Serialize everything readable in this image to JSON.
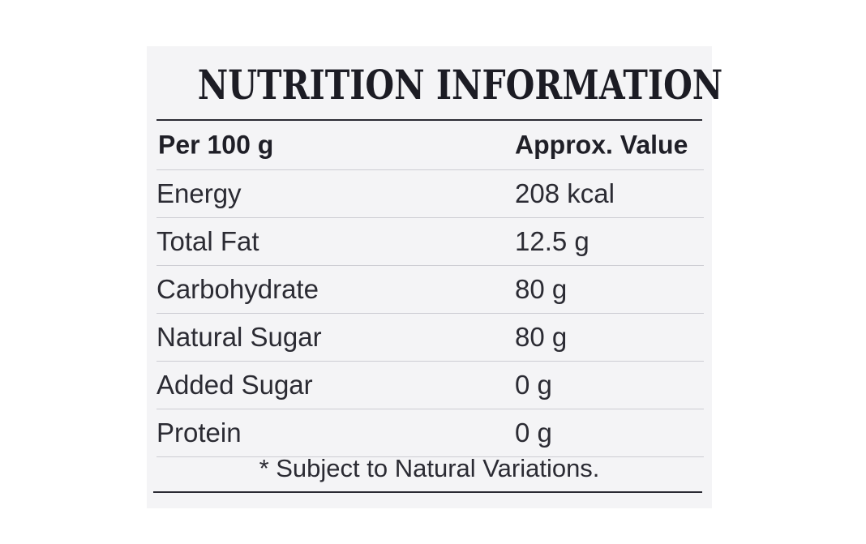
{
  "panel": {
    "title": "NUTRITION INFORMATION",
    "header": {
      "basis": "Per 100 g",
      "value_col": "Approx. Value"
    },
    "rows": [
      {
        "name": "Energy",
        "value": "208 kcal"
      },
      {
        "name": "Total Fat",
        "value": "12.5 g"
      },
      {
        "name": "Carbohydrate",
        "value": "80 g"
      },
      {
        "name": "Natural Sugar",
        "value": "80 g"
      },
      {
        "name": "Added Sugar",
        "value": "0 g"
      },
      {
        "name": "Protein",
        "value": "0 g"
      }
    ],
    "footnote": "* Subject to Natural Variations."
  }
}
